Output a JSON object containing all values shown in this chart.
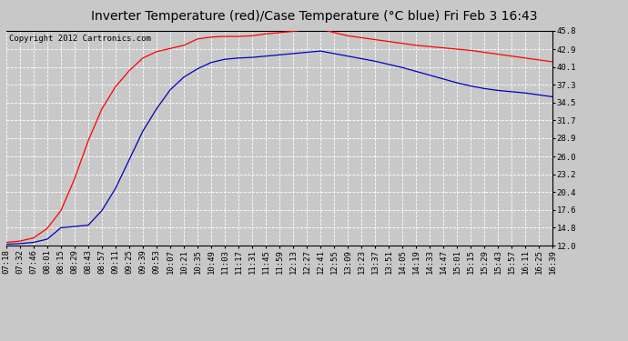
{
  "title": "Inverter Temperature (red)/Case Temperature (°C blue) Fri Feb 3 16:43",
  "copyright": "Copyright 2012 Cartronics.com",
  "x_labels": [
    "07:18",
    "07:32",
    "07:46",
    "08:01",
    "08:15",
    "08:29",
    "08:43",
    "08:57",
    "09:11",
    "09:25",
    "09:39",
    "09:53",
    "10:07",
    "10:21",
    "10:35",
    "10:49",
    "11:03",
    "11:17",
    "11:31",
    "11:45",
    "11:59",
    "12:13",
    "12:27",
    "12:41",
    "12:55",
    "13:09",
    "13:23",
    "13:37",
    "13:51",
    "14:05",
    "14:19",
    "14:33",
    "14:47",
    "15:01",
    "15:15",
    "15:29",
    "15:43",
    "15:57",
    "16:11",
    "16:25",
    "16:39"
  ],
  "y_ticks": [
    12.0,
    14.8,
    17.6,
    20.4,
    23.2,
    26.0,
    28.9,
    31.7,
    34.5,
    37.3,
    40.1,
    42.9,
    45.8
  ],
  "y_tick_labels": [
    "12.0",
    "14.8",
    "17.6",
    "20.4",
    "23.2",
    "26.0",
    "28.9",
    "31.7",
    "34.5",
    "37.3",
    "40.1",
    "42.9",
    "45.8"
  ],
  "ylim": [
    12.0,
    45.8
  ],
  "red_data": [
    12.5,
    12.7,
    13.2,
    14.7,
    17.5,
    22.5,
    28.5,
    33.5,
    37.0,
    39.5,
    41.5,
    42.5,
    43.0,
    43.5,
    44.5,
    44.8,
    44.9,
    44.9,
    45.0,
    45.3,
    45.5,
    45.7,
    46.0,
    46.1,
    45.5,
    45.0,
    44.7,
    44.4,
    44.1,
    43.8,
    43.5,
    43.3,
    43.1,
    42.9,
    42.7,
    42.4,
    42.1,
    41.8,
    41.5,
    41.2,
    40.9
  ],
  "blue_data": [
    12.2,
    12.3,
    12.5,
    13.0,
    14.8,
    15.0,
    15.2,
    17.5,
    21.0,
    25.5,
    30.0,
    33.5,
    36.5,
    38.5,
    39.8,
    40.8,
    41.3,
    41.5,
    41.6,
    41.8,
    42.0,
    42.2,
    42.4,
    42.6,
    42.2,
    41.8,
    41.4,
    41.0,
    40.5,
    40.0,
    39.4,
    38.8,
    38.2,
    37.6,
    37.1,
    36.7,
    36.4,
    36.2,
    36.0,
    35.7,
    35.4
  ],
  "red_color": "#ff0000",
  "blue_color": "#0000bb",
  "bg_color": "#c8c8c8",
  "plot_bg_color": "#c8c8c8",
  "grid_color": "#ffffff",
  "title_fontsize": 10,
  "tick_fontsize": 6.5,
  "copyright_fontsize": 6.5,
  "figwidth": 6.9,
  "figheight": 3.75,
  "dpi": 100
}
